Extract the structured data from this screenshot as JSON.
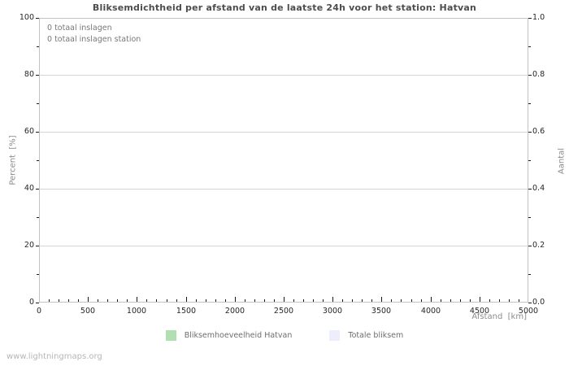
{
  "page": {
    "watermark": "www.lightningmaps.org"
  },
  "colors": {
    "grid": "#d5d5d5",
    "axis_border": "#c3c3c3",
    "tick_mark": "#1a1a1a",
    "series_hatvan": "#b2dfb2",
    "series_total": "#ededfc"
  },
  "chart_data": {
    "type": "line",
    "title": "Bliksemdichtheid per afstand van de laatste 24h voor het station: Hatvan",
    "xlabel": "Afstand  [km]",
    "ylabel_left": "Percent  [%]",
    "ylabel_right": "Aantal",
    "xlim": [
      0,
      5000
    ],
    "x_major_ticks": [
      0,
      500,
      1000,
      1500,
      2000,
      2500,
      3000,
      3500,
      4000,
      4500,
      5000
    ],
    "x_minor_tick_step": 100,
    "ylim_left": [
      0,
      100
    ],
    "y_major_ticks_left": [
      0,
      20,
      40,
      60,
      80,
      100
    ],
    "y_minor_ticks_left": [
      10,
      30,
      50,
      70,
      90
    ],
    "ylim_right": [
      0.0,
      1.0
    ],
    "y_major_tick_labels_right": [
      "0.0",
      "0.2",
      "0.4",
      "0.6",
      "0.8",
      "1.0"
    ],
    "grid": "horizontal-major-only",
    "legend_position": "bottom-center",
    "annotations": [
      "0 totaal inslagen",
      "0 totaal inslagen station"
    ],
    "series": [
      {
        "name": "Bliksemhoeveelheid Hatvan",
        "color": "#b2dfb2",
        "values": []
      },
      {
        "name": "Totale bliksem",
        "color": "#ededfc",
        "values": []
      }
    ]
  }
}
